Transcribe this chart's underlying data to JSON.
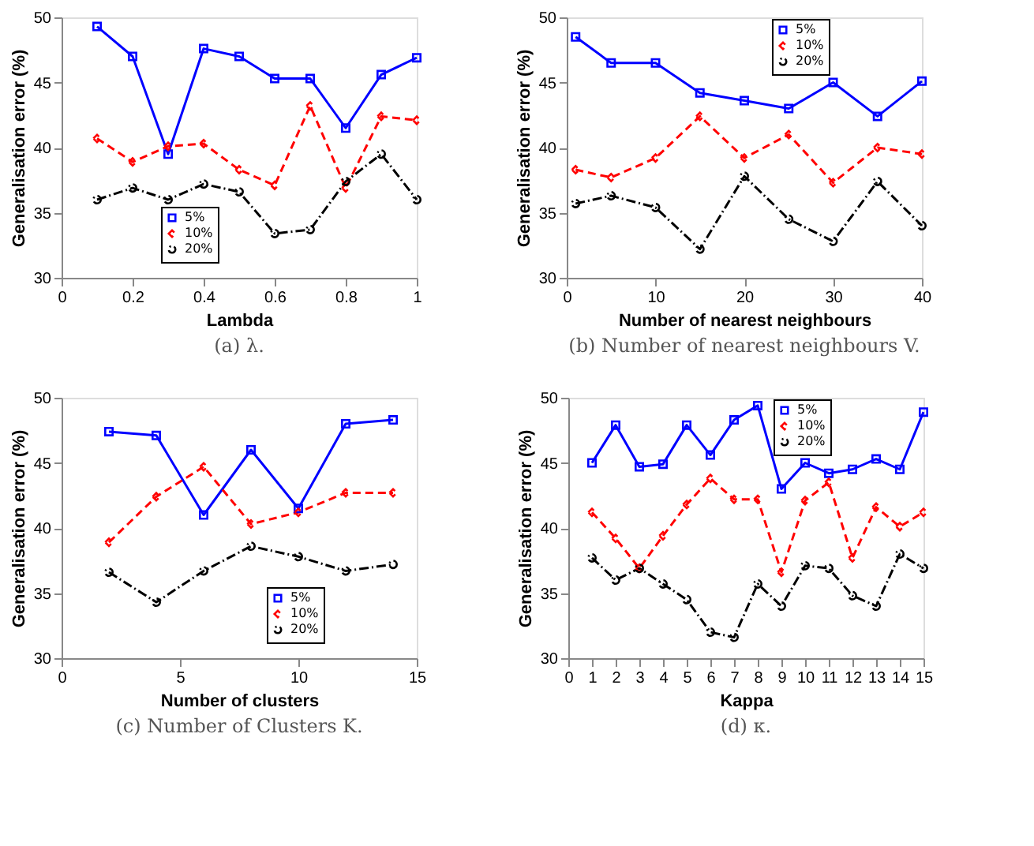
{
  "chart_data": [
    {
      "type": "line",
      "title": "(a) λ.",
      "xlabel": "Lambda",
      "ylabel": "Generalisation error (%)",
      "x": [
        0.1,
        0.2,
        0.3,
        0.4,
        0.5,
        0.6,
        0.7,
        0.8,
        0.9,
        1.0
      ],
      "xlim": [
        0,
        1
      ],
      "xticks": [
        0,
        0.2,
        0.4,
        0.6,
        0.8,
        1
      ],
      "ylim": [
        30,
        50
      ],
      "yticks": [
        30,
        35,
        40,
        45,
        50
      ],
      "grid": false,
      "legend": "bottom",
      "series": [
        {
          "name": "5%",
          "color": "#0000ff",
          "marker": "square",
          "line_style": "solid",
          "values": [
            49.3,
            47.0,
            39.5,
            47.6,
            47.0,
            45.3,
            45.3,
            41.5,
            45.6,
            46.9
          ]
        },
        {
          "name": "10%",
          "color": "#ff0000",
          "marker": "diamond",
          "line_style": "dashed",
          "values": [
            40.7,
            38.9,
            40.1,
            40.3,
            38.3,
            37.1,
            43.2,
            36.9,
            42.4,
            42.1
          ]
        },
        {
          "name": "20%",
          "color": "#000000",
          "marker": "circle",
          "line_style": "dotted",
          "values": [
            36.0,
            36.9,
            36.0,
            37.2,
            36.6,
            33.4,
            33.7,
            37.4,
            39.5,
            36.0
          ]
        }
      ]
    },
    {
      "type": "line",
      "title": "(b) Number of nearest neighbours V.",
      "xlabel": "Number of nearest neighbours",
      "ylabel": "Generalisation error (%)",
      "x": [
        1,
        5,
        10,
        15,
        20,
        25,
        30,
        35,
        40
      ],
      "xlim": [
        0,
        40
      ],
      "xticks": [
        0,
        10,
        20,
        30,
        40
      ],
      "ylim": [
        30,
        50
      ],
      "yticks": [
        30,
        35,
        40,
        45,
        50
      ],
      "grid": false,
      "legend": "top right",
      "series": [
        {
          "name": "5%",
          "color": "#0000ff",
          "marker": "square",
          "line_style": "solid",
          "values": [
            48.5,
            46.5,
            46.5,
            44.2,
            43.6,
            43.0,
            45.0,
            42.4,
            45.1
          ]
        },
        {
          "name": "10%",
          "color": "#ff0000",
          "marker": "diamond",
          "line_style": "dashed",
          "values": [
            38.3,
            37.7,
            39.2,
            42.4,
            39.2,
            41.0,
            37.3,
            40.0,
            39.5
          ]
        },
        {
          "name": "20%",
          "color": "#000000",
          "marker": "circle",
          "line_style": "dotted",
          "values": [
            35.7,
            36.3,
            35.4,
            32.2,
            37.8,
            34.5,
            32.8,
            37.4,
            34.0
          ]
        }
      ]
    },
    {
      "type": "line",
      "title": "(c) Number of Clusters K.",
      "xlabel": "Number of clusters",
      "ylabel": "Generalisation error (%)",
      "x": [
        2,
        4,
        6,
        8,
        10,
        12,
        14
      ],
      "xlim": [
        0,
        15
      ],
      "xticks": [
        0,
        5,
        10,
        15
      ],
      "ylim": [
        30,
        50
      ],
      "yticks": [
        30,
        35,
        40,
        45,
        50
      ],
      "grid": false,
      "legend": "bottom right",
      "series": [
        {
          "name": "5%",
          "color": "#0000ff",
          "marker": "square",
          "line_style": "solid",
          "values": [
            47.4,
            47.1,
            41.0,
            46.0,
            41.5,
            48.0,
            48.3
          ]
        },
        {
          "name": "10%",
          "color": "#ff0000",
          "marker": "diamond",
          "line_style": "dashed",
          "values": [
            38.9,
            42.4,
            44.7,
            40.3,
            41.2,
            42.7,
            42.7
          ]
        },
        {
          "name": "20%",
          "color": "#000000",
          "marker": "circle",
          "line_style": "dotted",
          "values": [
            36.6,
            34.3,
            36.7,
            38.6,
            37.8,
            36.7,
            37.2
          ]
        }
      ]
    },
    {
      "type": "line",
      "title": "(d) κ.",
      "xlabel": "Kappa",
      "ylabel": "Generalisation error (%)",
      "x": [
        1,
        2,
        3,
        4,
        5,
        6,
        7,
        8,
        9,
        10,
        11,
        12,
        13,
        14,
        15
      ],
      "xlim": [
        0,
        15
      ],
      "xticks": [
        0,
        1,
        2,
        3,
        4,
        5,
        6,
        7,
        8,
        9,
        10,
        11,
        12,
        13,
        14,
        15
      ],
      "ylim": [
        30,
        50
      ],
      "yticks": [
        30,
        35,
        40,
        45,
        50
      ],
      "grid": false,
      "legend": "top right",
      "series": [
        {
          "name": "5%",
          "color": "#0000ff",
          "marker": "square",
          "line_style": "solid",
          "values": [
            45.0,
            47.9,
            44.7,
            44.9,
            47.9,
            45.6,
            48.3,
            49.4,
            43.0,
            45.0,
            44.2,
            44.5,
            45.3,
            44.5,
            48.9
          ]
        },
        {
          "name": "10%",
          "color": "#ff0000",
          "marker": "diamond",
          "line_style": "dashed",
          "values": [
            41.2,
            39.2,
            36.9,
            39.4,
            41.8,
            43.8,
            42.2,
            42.2,
            36.6,
            42.1,
            43.5,
            37.7,
            41.6,
            40.1,
            41.2
          ]
        },
        {
          "name": "20%",
          "color": "#000000",
          "marker": "circle",
          "line_style": "dotted",
          "values": [
            37.7,
            36.0,
            36.9,
            35.7,
            34.5,
            32.0,
            31.6,
            35.7,
            34.0,
            37.1,
            36.9,
            34.8,
            34.0,
            38.0,
            36.9
          ]
        }
      ]
    }
  ]
}
